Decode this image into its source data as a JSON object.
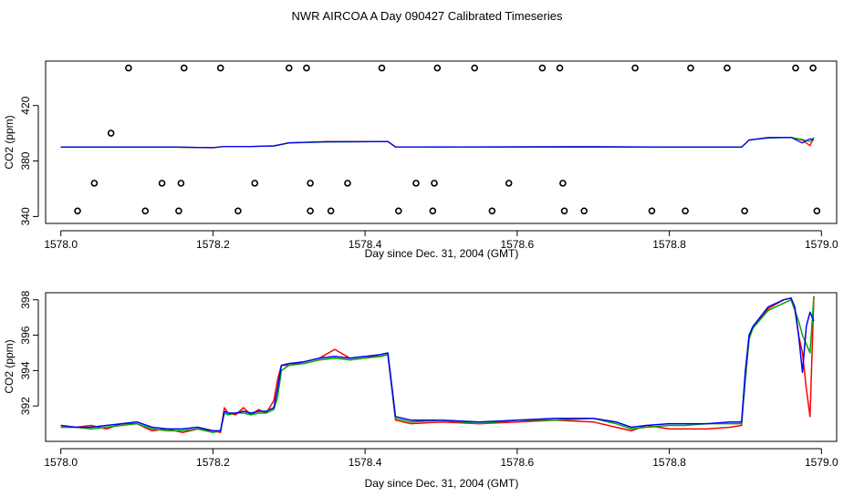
{
  "title": "NWR AIRCOA A  Day 090427  Calibrated Timeseries",
  "chart_data": [
    {
      "type": "scatter",
      "name": "calibration-points-panel",
      "xlabel": "Day since Dec. 31, 2004 (GMT)",
      "ylabel": "CO2 (ppm)",
      "xlim": [
        1577.98,
        1579.02
      ],
      "ylim": [
        335,
        452
      ],
      "xticks": [
        1578.0,
        1578.2,
        1578.4,
        1578.6,
        1578.8,
        1579.0
      ],
      "xtick_labels": [
        "1578.0",
        "1578.2",
        "1578.4",
        "1578.6",
        "1578.8",
        "1579.0"
      ],
      "yticks": [
        340,
        380,
        420
      ],
      "ytick_labels": [
        "340",
        "380",
        "420"
      ],
      "grid": false,
      "points": [
        {
          "x": 1578.089,
          "y": 447
        },
        {
          "x": 1578.162,
          "y": 447
        },
        {
          "x": 1578.21,
          "y": 447
        },
        {
          "x": 1578.3,
          "y": 447
        },
        {
          "x": 1578.323,
          "y": 447
        },
        {
          "x": 1578.422,
          "y": 447
        },
        {
          "x": 1578.495,
          "y": 447
        },
        {
          "x": 1578.544,
          "y": 447
        },
        {
          "x": 1578.633,
          "y": 447
        },
        {
          "x": 1578.656,
          "y": 447
        },
        {
          "x": 1578.755,
          "y": 447
        },
        {
          "x": 1578.828,
          "y": 447
        },
        {
          "x": 1578.876,
          "y": 447
        },
        {
          "x": 1578.966,
          "y": 447
        },
        {
          "x": 1578.989,
          "y": 447
        },
        {
          "x": 1578.066,
          "y": 400
        },
        {
          "x": 1578.044,
          "y": 364
        },
        {
          "x": 1578.133,
          "y": 364
        },
        {
          "x": 1578.158,
          "y": 364
        },
        {
          "x": 1578.255,
          "y": 364
        },
        {
          "x": 1578.328,
          "y": 364
        },
        {
          "x": 1578.377,
          "y": 364
        },
        {
          "x": 1578.467,
          "y": 364
        },
        {
          "x": 1578.491,
          "y": 364
        },
        {
          "x": 1578.589,
          "y": 364
        },
        {
          "x": 1578.66,
          "y": 364
        },
        {
          "x": 1578.022,
          "y": 344
        },
        {
          "x": 1578.111,
          "y": 344
        },
        {
          "x": 1578.155,
          "y": 344
        },
        {
          "x": 1578.233,
          "y": 344
        },
        {
          "x": 1578.328,
          "y": 344
        },
        {
          "x": 1578.355,
          "y": 344
        },
        {
          "x": 1578.444,
          "y": 344
        },
        {
          "x": 1578.489,
          "y": 344
        },
        {
          "x": 1578.567,
          "y": 344
        },
        {
          "x": 1578.662,
          "y": 344
        },
        {
          "x": 1578.688,
          "y": 344
        },
        {
          "x": 1578.777,
          "y": 344
        },
        {
          "x": 1578.821,
          "y": 344
        },
        {
          "x": 1578.899,
          "y": 344
        },
        {
          "x": 1578.994,
          "y": 344
        }
      ],
      "trace_series": [
        {
          "color": "#ff0000",
          "x": [
            1578.0,
            1578.05,
            1578.1,
            1578.15,
            1578.2,
            1578.215,
            1578.25,
            1578.28,
            1578.3,
            1578.35,
            1578.4,
            1578.43,
            1578.44,
            1578.5,
            1578.6,
            1578.7,
            1578.8,
            1578.85,
            1578.895,
            1578.905,
            1578.93,
            1578.96,
            1578.975,
            1578.985,
            1578.99
          ],
          "y": [
            391,
            391,
            391,
            391,
            390.5,
            391.5,
            391.5,
            392,
            394,
            395,
            395,
            395,
            391,
            391,
            391,
            391,
            391,
            391,
            391,
            396,
            398,
            398,
            396,
            392,
            398
          ]
        },
        {
          "color": "#00aa00",
          "x": [
            1578.0,
            1578.05,
            1578.1,
            1578.15,
            1578.2,
            1578.215,
            1578.25,
            1578.28,
            1578.3,
            1578.35,
            1578.4,
            1578.43,
            1578.44,
            1578.5,
            1578.6,
            1578.7,
            1578.8,
            1578.85,
            1578.895,
            1578.905,
            1578.93,
            1578.96,
            1578.975,
            1578.985,
            1578.99
          ],
          "y": [
            391,
            391,
            391,
            391,
            390.6,
            391.5,
            391.5,
            391.8,
            394,
            394.7,
            394.8,
            395,
            391.2,
            391.1,
            391.2,
            391.3,
            391,
            391,
            391,
            396,
            397.6,
            398,
            396.5,
            395,
            398
          ]
        },
        {
          "color": "#0000ff",
          "x": [
            1578.0,
            1578.05,
            1578.1,
            1578.15,
            1578.2,
            1578.215,
            1578.25,
            1578.28,
            1578.3,
            1578.35,
            1578.4,
            1578.43,
            1578.44,
            1578.5,
            1578.6,
            1578.7,
            1578.8,
            1578.85,
            1578.895,
            1578.905,
            1578.93,
            1578.96,
            1578.975,
            1578.985,
            1578.99
          ],
          "y": [
            391,
            391,
            391,
            391,
            390.6,
            391.5,
            391.5,
            391.8,
            394.2,
            394.8,
            394.9,
            395,
            391.2,
            391.1,
            391.2,
            391.3,
            391,
            391,
            391,
            396.2,
            397.8,
            398,
            394,
            397,
            396
          ]
        }
      ]
    },
    {
      "type": "line",
      "name": "timeseries-panel",
      "xlabel": "Day since Dec. 31, 2004 (GMT)",
      "ylabel": "CO2 (ppm)",
      "xlim": [
        1577.98,
        1579.02
      ],
      "ylim": [
        390.0,
        398.4
      ],
      "xticks": [
        1578.0,
        1578.2,
        1578.4,
        1578.6,
        1578.8,
        1579.0
      ],
      "xtick_labels": [
        "1578.0",
        "1578.2",
        "1578.4",
        "1578.6",
        "1578.8",
        "1579.0"
      ],
      "yticks": [
        392,
        394,
        396,
        398
      ],
      "ytick_labels": [
        "392",
        "394",
        "396",
        "398"
      ],
      "grid": false,
      "series": [
        {
          "color": "#ff0000",
          "x": [
            1578.0,
            1578.02,
            1578.04,
            1578.06,
            1578.08,
            1578.1,
            1578.12,
            1578.14,
            1578.16,
            1578.18,
            1578.2,
            1578.21,
            1578.215,
            1578.22,
            1578.23,
            1578.24,
            1578.25,
            1578.26,
            1578.27,
            1578.28,
            1578.285,
            1578.29,
            1578.3,
            1578.32,
            1578.34,
            1578.36,
            1578.38,
            1578.4,
            1578.42,
            1578.43,
            1578.44,
            1578.46,
            1578.5,
            1578.55,
            1578.6,
            1578.65,
            1578.7,
            1578.73,
            1578.75,
            1578.77,
            1578.8,
            1578.82,
            1578.85,
            1578.88,
            1578.895,
            1578.9,
            1578.905,
            1578.91,
            1578.93,
            1578.95,
            1578.96,
            1578.965,
            1578.97,
            1578.975,
            1578.98,
            1578.985,
            1578.99
          ],
          "y": [
            390.8,
            390.8,
            390.9,
            390.7,
            391.0,
            391.0,
            390.6,
            390.7,
            390.5,
            390.7,
            390.6,
            390.5,
            391.9,
            391.6,
            391.5,
            391.9,
            391.5,
            391.8,
            391.6,
            392.3,
            393.5,
            394.3,
            394.3,
            394.5,
            394.7,
            395.2,
            394.7,
            394.8,
            394.8,
            394.9,
            391.2,
            391.0,
            391.1,
            391.0,
            391.1,
            391.2,
            391.1,
            390.8,
            390.6,
            390.9,
            390.7,
            390.7,
            390.7,
            390.8,
            390.9,
            394.0,
            396.0,
            396.5,
            397.5,
            398.0,
            398.1,
            397.5,
            396.0,
            395.0,
            393.0,
            391.4,
            398.2
          ]
        },
        {
          "color": "#00aa00",
          "x": [
            1578.0,
            1578.02,
            1578.04,
            1578.06,
            1578.08,
            1578.1,
            1578.12,
            1578.14,
            1578.16,
            1578.18,
            1578.2,
            1578.21,
            1578.215,
            1578.22,
            1578.23,
            1578.24,
            1578.25,
            1578.26,
            1578.27,
            1578.28,
            1578.285,
            1578.29,
            1578.3,
            1578.32,
            1578.34,
            1578.36,
            1578.38,
            1578.4,
            1578.42,
            1578.43,
            1578.44,
            1578.46,
            1578.5,
            1578.55,
            1578.6,
            1578.65,
            1578.7,
            1578.73,
            1578.75,
            1578.77,
            1578.8,
            1578.82,
            1578.85,
            1578.88,
            1578.895,
            1578.9,
            1578.905,
            1578.91,
            1578.93,
            1578.95,
            1578.96,
            1578.965,
            1578.97,
            1578.975,
            1578.98,
            1578.985,
            1578.99
          ],
          "y": [
            390.8,
            390.8,
            390.7,
            390.8,
            390.9,
            391.0,
            390.7,
            390.6,
            390.6,
            390.7,
            390.5,
            390.6,
            391.6,
            391.5,
            391.6,
            391.6,
            391.5,
            391.6,
            391.6,
            391.8,
            392.5,
            394.0,
            394.3,
            394.4,
            394.6,
            394.7,
            394.6,
            394.7,
            394.8,
            394.9,
            391.3,
            391.1,
            391.2,
            391.0,
            391.2,
            391.2,
            391.3,
            391.0,
            390.7,
            390.8,
            390.9,
            390.9,
            391.0,
            391.0,
            391.0,
            393.5,
            395.8,
            396.4,
            397.4,
            397.8,
            398.0,
            397.4,
            396.8,
            396.0,
            395.5,
            395.0,
            398.2
          ]
        },
        {
          "color": "#0000ff",
          "x": [
            1578.0,
            1578.02,
            1578.04,
            1578.06,
            1578.08,
            1578.1,
            1578.12,
            1578.14,
            1578.16,
            1578.18,
            1578.2,
            1578.21,
            1578.215,
            1578.22,
            1578.23,
            1578.24,
            1578.25,
            1578.26,
            1578.27,
            1578.28,
            1578.285,
            1578.29,
            1578.3,
            1578.32,
            1578.34,
            1578.36,
            1578.38,
            1578.4,
            1578.42,
            1578.43,
            1578.44,
            1578.46,
            1578.5,
            1578.55,
            1578.6,
            1578.65,
            1578.7,
            1578.73,
            1578.75,
            1578.77,
            1578.8,
            1578.82,
            1578.85,
            1578.88,
            1578.895,
            1578.9,
            1578.905,
            1578.91,
            1578.93,
            1578.95,
            1578.96,
            1578.965,
            1578.97,
            1578.975,
            1578.98,
            1578.985,
            1578.99
          ],
          "y": [
            390.9,
            390.8,
            390.8,
            390.9,
            391.0,
            391.1,
            390.8,
            390.7,
            390.7,
            390.8,
            390.6,
            390.6,
            391.7,
            391.6,
            391.6,
            391.7,
            391.6,
            391.7,
            391.7,
            391.9,
            393.0,
            394.3,
            394.4,
            394.5,
            394.7,
            394.8,
            394.7,
            394.8,
            394.9,
            395.0,
            391.4,
            391.2,
            391.2,
            391.1,
            391.2,
            391.3,
            391.3,
            391.1,
            390.8,
            390.9,
            391.0,
            391.0,
            391.0,
            391.1,
            391.1,
            394.0,
            396.0,
            396.5,
            397.6,
            398.0,
            398.1,
            397.6,
            396.0,
            393.9,
            396.5,
            397.3,
            396.8
          ]
        }
      ]
    }
  ]
}
